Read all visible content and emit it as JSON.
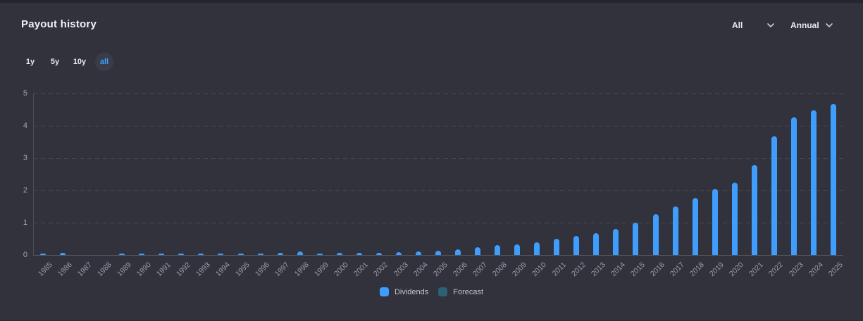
{
  "title": "Payout history",
  "filters": [
    {
      "value": "All"
    },
    {
      "value": "Annual"
    }
  ],
  "range_buttons": [
    {
      "label": "1y",
      "active": false
    },
    {
      "label": "5y",
      "active": false
    },
    {
      "label": "10y",
      "active": false
    },
    {
      "label": "all",
      "active": true
    }
  ],
  "chart_data": {
    "type": "bar",
    "title": "Payout history",
    "categories": [
      1985,
      1986,
      1987,
      1988,
      1989,
      1990,
      1991,
      1992,
      1993,
      1994,
      1995,
      1996,
      1997,
      1998,
      1999,
      2000,
      2001,
      2002,
      2003,
      2004,
      2005,
      2006,
      2007,
      2008,
      2009,
      2010,
      2011,
      2012,
      2013,
      2014,
      2015,
      2016,
      2017,
      2018,
      2019,
      2020,
      2021,
      2022,
      2023,
      2024,
      2025
    ],
    "series": [
      {
        "name": "Dividends",
        "color": "#3e9dfd",
        "values": [
          0.04,
          0.07,
          0,
          0,
          0.04,
          0.04,
          0.04,
          0.04,
          0.04,
          0.04,
          0.04,
          0.05,
          0.06,
          0.1,
          0.05,
          0.06,
          0.06,
          0.07,
          0.08,
          0.1,
          0.12,
          0.17,
          0.25,
          0.31,
          0.33,
          0.39,
          0.49,
          0.58,
          0.68,
          0.8,
          1.0,
          1.26,
          1.51,
          1.77,
          2.04,
          2.23,
          2.78,
          3.67,
          4.27,
          4.47,
          4.67
        ]
      },
      {
        "name": "Forecast",
        "color": "#2b6173",
        "values": []
      }
    ],
    "xlabel": "",
    "ylabel": "",
    "ylim": [
      0,
      5
    ],
    "yticks": [
      0,
      1,
      2,
      3,
      4,
      5
    ],
    "grid": "horizontal-dashed",
    "legend_position": "bottom-center"
  },
  "legend": [
    {
      "label": "Dividends",
      "color": "#3e9dfd"
    },
    {
      "label": "Forecast",
      "color": "#2b6173"
    }
  ]
}
